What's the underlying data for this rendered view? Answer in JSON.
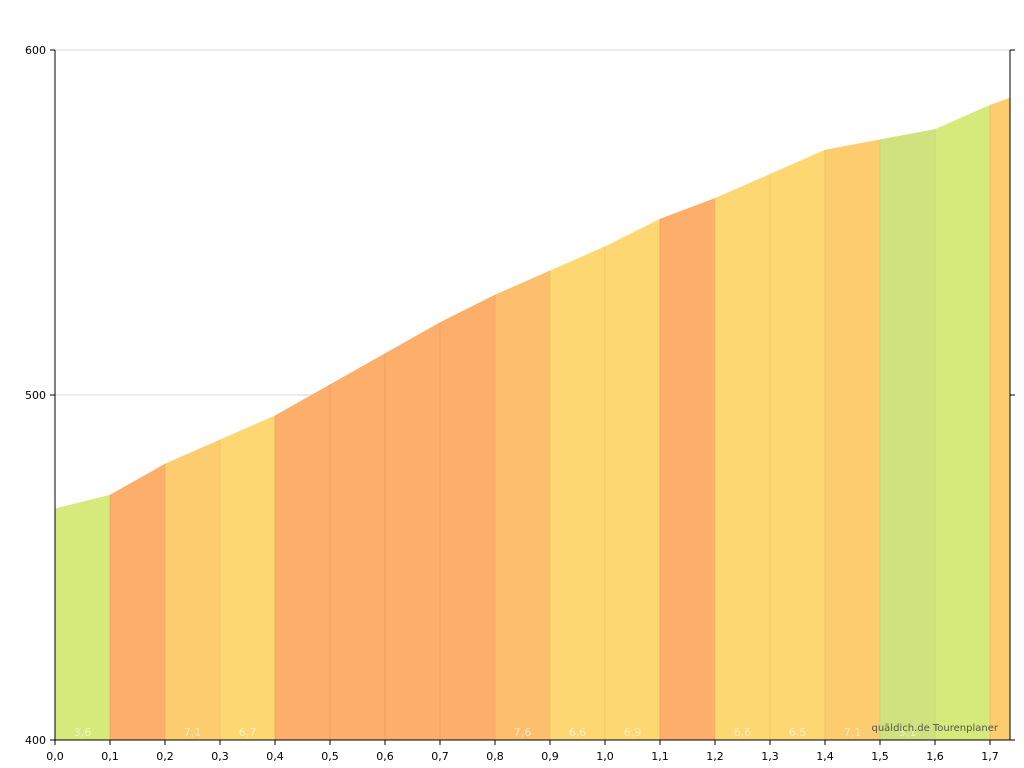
{
  "chart_data": {
    "type": "area",
    "xlim": [
      0,
      1.75
    ],
    "ylim": [
      400,
      600
    ],
    "x_ticks": [
      "0,0",
      "0,1",
      "0,2",
      "0,3",
      "0,4",
      "0,5",
      "0,6",
      "0,7",
      "0,8",
      "0,9",
      "1,0",
      "1,1",
      "1,2",
      "1,3",
      "1,4",
      "1,5",
      "1,6",
      "1,7"
    ],
    "y_ticks": [
      400,
      500,
      600
    ],
    "grid": "horizontal",
    "profile": {
      "x": [
        0.0,
        0.1,
        0.2,
        0.3,
        0.4,
        0.5,
        0.6,
        0.7,
        0.8,
        0.9,
        1.0,
        1.1,
        1.2,
        1.3,
        1.4,
        1.5,
        1.6,
        1.7,
        1.735
      ],
      "y": [
        467,
        471,
        480,
        487,
        494,
        503,
        512,
        521,
        529,
        536,
        543,
        551,
        557,
        564,
        571,
        574,
        577,
        584,
        586
      ]
    },
    "segment_labels": [
      "3,6",
      "",
      "7,1",
      "6,7",
      "",
      "",
      "",
      "",
      "7,6",
      "6,6",
      "6,9",
      "",
      "6,6",
      "6,5",
      "7,1",
      "3,1",
      "",
      "",
      ""
    ],
    "segment_colors": [
      "#d6ea7c",
      "#fdae6b",
      "#fdcc6e",
      "#fdd872",
      "#fdae6b",
      "#fdae6b",
      "#fdae6b",
      "#fdae6b",
      "#fdbf6e",
      "#fdd872",
      "#fdd872",
      "#fdae6b",
      "#fdd872",
      "#fdd872",
      "#fdcc6e",
      "#cfe27e",
      "#d6ea7c",
      "#fdcc6e",
      "#fdcc6e"
    ]
  },
  "credit": "quäldich.de Tourenplaner"
}
